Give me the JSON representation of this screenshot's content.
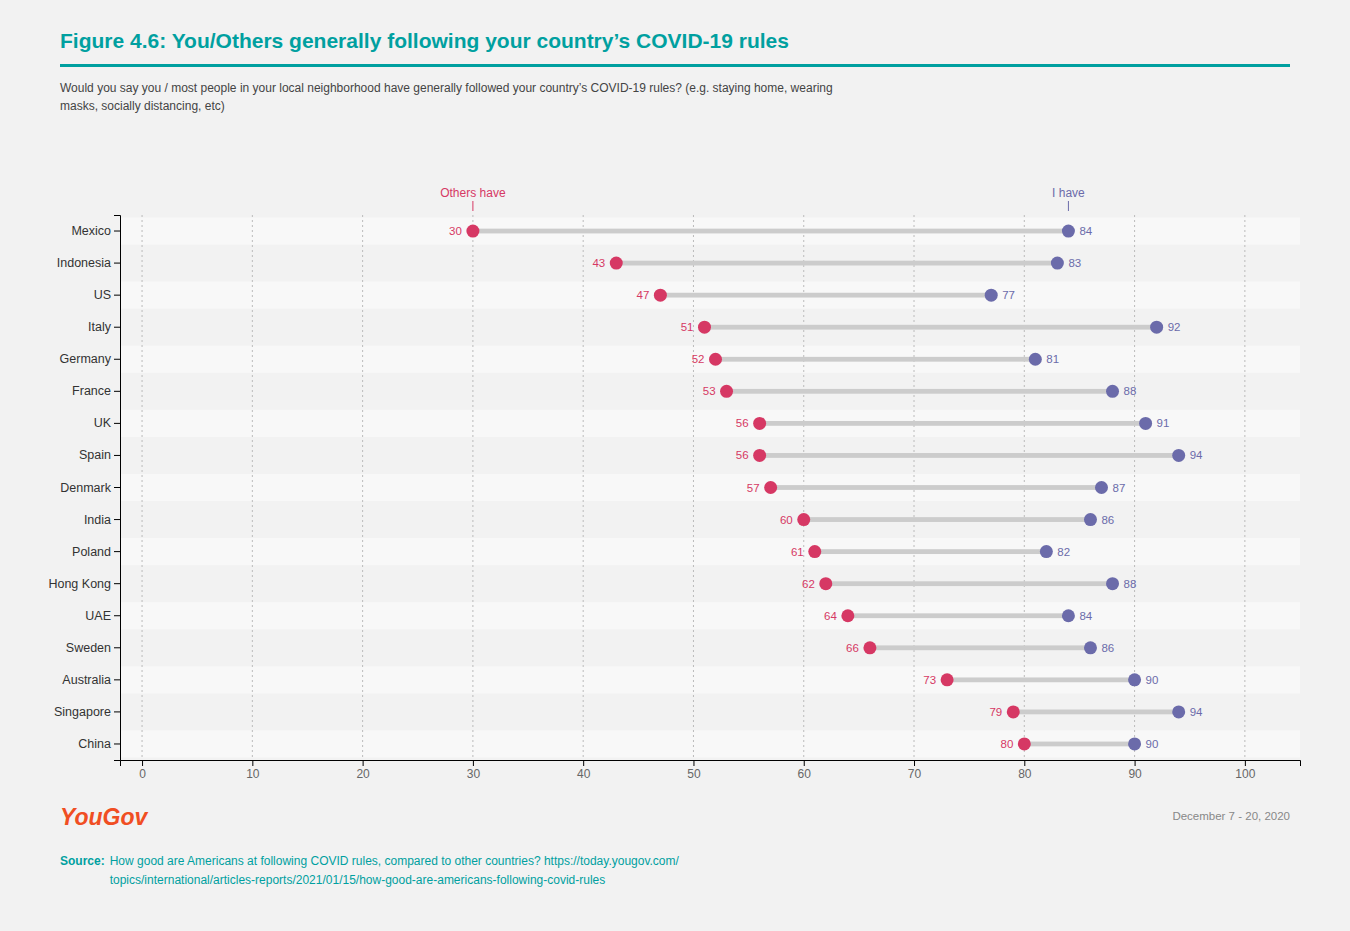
{
  "chart_data": {
    "type": "dumbbell",
    "orientation": "horizontal",
    "title": "Figure 4.6: You/Others generally following your country’s COVID-19 rules",
    "subtitle": "Would you say you / most people in your local neighborhood have generally followed your country’s COVID-19 rules? (e.g. staying home, wearing\nmasks, socially distancing, etc)",
    "categories": [
      "Mexico",
      "Indonesia",
      "US",
      "Italy",
      "Germany",
      "France",
      "UK",
      "Spain",
      "Denmark",
      "India",
      "Poland",
      "Hong Kong",
      "UAE",
      "Sweden",
      "Australia",
      "Singapore",
      "China"
    ],
    "series": [
      {
        "name": "Others have",
        "color": "#d63864",
        "values": [
          30,
          43,
          47,
          51,
          52,
          53,
          56,
          56,
          57,
          60,
          61,
          62,
          64,
          66,
          73,
          79,
          80
        ]
      },
      {
        "name": "I have",
        "color": "#6b6baa",
        "values": [
          84,
          83,
          77,
          92,
          81,
          88,
          91,
          94,
          87,
          86,
          82,
          88,
          84,
          86,
          90,
          94,
          90
        ]
      }
    ],
    "xlim": [
      -2,
      105
    ],
    "xticks": [
      0,
      10,
      20,
      30,
      40,
      50,
      60,
      70,
      80,
      90,
      100
    ],
    "grid": true,
    "legend": "top",
    "data_labels": true,
    "annotations": [
      "YouGov",
      "December 7 - 20, 2020",
      "Source:",
      "How good are Americans at following COVID rules, compared to other countries? https://today.yougov.com/\ntopics/international/articles-reports/2021/01/15/how-good-are-americans-following-covid-rules"
    ]
  }
}
